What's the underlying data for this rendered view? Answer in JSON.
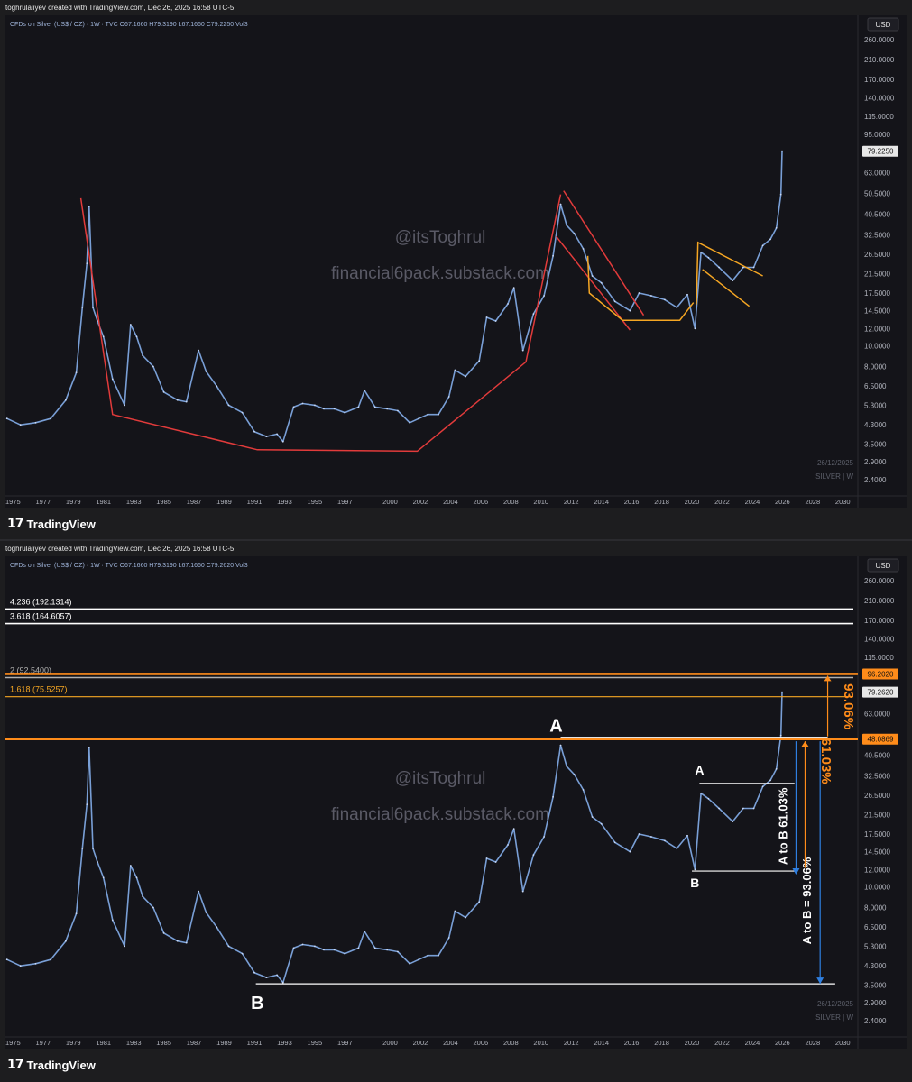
{
  "panels": [
    {
      "credit": "toghrulaliyev created with TradingView.com, Dec 26, 2025 16:58 UTC-5",
      "symbol_line": "CFDs on Silver (US$ / OZ) · 1W · TVC   O67.1660   H79.3190   L67.1660   C79.2250   Vol3",
      "currency_label": "USD",
      "last_price_label": "79.2250",
      "last_price": 79.225,
      "watermark_handle": "@itsToghrul",
      "watermark_site": "financial6pack.substack.com",
      "date_stamp": "26/12/2025",
      "series_stamp": "SILVER | W",
      "brand_mark": "17",
      "brand_name": "TradingView"
    },
    {
      "credit": "toghrulaliyev created with TradingView.com, Dec 26, 2025 16:58 UTC-5",
      "symbol_line": "CFDs on Silver (US$ / OZ) · 1W · TVC   O67.1660   H79.3190   L67.1660   C79.2620   Vol3",
      "currency_label": "USD",
      "last_price_label": "79.2620",
      "last_price": 79.262,
      "watermark_handle": "@itsToghrul",
      "watermark_site": "financial6pack.substack.com",
      "date_stamp": "26/12/2025",
      "series_stamp": "SILVER | W",
      "brand_mark": "17",
      "brand_name": "TradingView",
      "fib_levels": [
        {
          "label": "4.236 (192.1314)",
          "value": 192.1314,
          "color": "#ffffff"
        },
        {
          "label": "3.618 (164.6057)",
          "value": 164.6057,
          "color": "#ffffff"
        },
        {
          "label": "2 (92.5400)",
          "value": 92.54,
          "color": "#b0b0b0"
        },
        {
          "label": "1.618 (75.5257)",
          "value": 75.5257,
          "color": "#f5a623"
        }
      ],
      "price_tags": [
        {
          "label": "96.2020",
          "value": 96.202
        },
        {
          "label": "48.0869",
          "value": 48.0869
        }
      ],
      "annotations": {
        "big_a": "A",
        "big_b": "B",
        "small_a": "A",
        "small_b": "B",
        "measure_small": "A to B 61.03%",
        "measure_big": "A to B = 93.06%",
        "pct_upper": "93.06%",
        "pct_lower": "61.03%"
      }
    }
  ],
  "chart_data": [
    {
      "type": "line",
      "title": "CFDs on Silver (US$ / OZ) · 1W · TVC",
      "xlabel": "",
      "ylabel": "USD",
      "log_scale": true,
      "grid": false,
      "x_tick_labels": [
        "1975",
        "1977",
        "1979",
        "1981",
        "1983",
        "1985",
        "1987",
        "1989",
        "1991",
        "1993",
        "1995",
        "1997",
        "2000",
        "2002",
        "2004",
        "2006",
        "2008",
        "2010",
        "2012",
        "2014",
        "2016",
        "2018",
        "2020",
        "2022",
        "2024",
        "2026",
        "2028",
        "2030"
      ],
      "y_tick_labels": [
        "260.0000",
        "210.0000",
        "170.0000",
        "140.0000",
        "115.0000",
        "95.0000",
        "63.0000",
        "50.5000",
        "40.5000",
        "32.5000",
        "26.5000",
        "21.5000",
        "17.5000",
        "14.5000",
        "12.0000",
        "10.0000",
        "8.0000",
        "6.5000",
        "5.3000",
        "4.3000",
        "3.5000",
        "2.9000",
        "2.4000"
      ],
      "ylim": [
        2.2,
        300
      ],
      "xlim": [
        1974.5,
        2031
      ],
      "series": [
        {
          "x": [
            1974.6,
            1975.5,
            1976.5,
            1977.5,
            1978.5,
            1979.2,
            1979.6,
            1979.9,
            1980.05,
            1980.3,
            1980.6,
            1981.0,
            1981.6,
            1982.4,
            1982.8,
            1983.2,
            1983.6,
            1984.3,
            1985.0,
            1985.9,
            1986.5,
            1987.3,
            1987.8,
            1988.5,
            1989.3,
            1990.2,
            1991.0,
            1991.8,
            1992.5,
            1992.9,
            1993.6,
            1994.2,
            1995.0,
            1995.6,
            1996.3,
            1997.0,
            1997.9,
            1998.3,
            1999.0,
            1999.8,
            2000.5,
            2001.3,
            2001.9,
            2002.5,
            2003.2,
            2003.9,
            2004.3,
            2005.0,
            2005.9,
            2006.4,
            2007.0,
            2007.8,
            2008.2,
            2008.8,
            2009.5,
            2010.2,
            2010.8,
            2011.3,
            2011.7,
            2012.2,
            2012.8,
            2013.4,
            2014.0,
            2014.9,
            2015.9,
            2016.5,
            2017.3,
            2018.2,
            2019.0,
            2019.7,
            2020.2,
            2020.6,
            2021.1,
            2021.8,
            2022.7,
            2023.4,
            2024.1,
            2024.7,
            2025.2,
            2025.6,
            2025.9,
            2025.98
          ],
          "y": [
            4.6,
            4.3,
            4.4,
            4.6,
            5.6,
            7.5,
            15,
            24,
            44,
            15,
            13,
            11,
            7,
            5.3,
            12.5,
            11,
            9,
            8,
            6.1,
            5.6,
            5.5,
            9.5,
            7.6,
            6.5,
            5.3,
            4.9,
            4.0,
            3.8,
            3.9,
            3.6,
            5.2,
            5.4,
            5.3,
            5.1,
            5.1,
            4.9,
            5.2,
            6.2,
            5.2,
            5.1,
            5.0,
            4.4,
            4.6,
            4.8,
            4.8,
            5.8,
            7.7,
            7.2,
            8.5,
            13.5,
            13,
            15.6,
            18.5,
            9.5,
            14,
            17,
            26,
            45,
            36,
            33,
            28,
            21,
            19.5,
            16,
            14.5,
            17.5,
            17,
            16.3,
            15,
            17.2,
            12,
            27,
            25.5,
            23,
            20,
            23,
            23,
            29,
            31,
            35,
            50,
            79.3
          ]
        }
      ]
    },
    {
      "type": "line",
      "title": "CFDs on Silver (US$ / OZ) · 1W · TVC",
      "xlabel": "",
      "ylabel": "USD",
      "log_scale": true,
      "grid": false,
      "x_tick_labels": [
        "1975",
        "1977",
        "1979",
        "1981",
        "1983",
        "1985",
        "1987",
        "1989",
        "1991",
        "1993",
        "1995",
        "1997",
        "2000",
        "2002",
        "2004",
        "2006",
        "2008",
        "2010",
        "2012",
        "2014",
        "2016",
        "2018",
        "2020",
        "2022",
        "2024",
        "2026",
        "2028",
        "2030"
      ],
      "y_tick_labels": [
        "260.0000",
        "210.0000",
        "170.0000",
        "140.0000",
        "115.0000",
        "63.0000",
        "40.5000",
        "32.5000",
        "26.5000",
        "21.5000",
        "17.5000",
        "14.5000",
        "12.0000",
        "10.0000",
        "8.0000",
        "6.5000",
        "5.3000",
        "4.3000",
        "3.5000",
        "2.9000",
        "2.4000"
      ],
      "ylim": [
        2.2,
        300
      ],
      "xlim": [
        1974.5,
        2031
      ],
      "series": [
        {
          "x": [
            1974.6,
            1975.5,
            1976.5,
            1977.5,
            1978.5,
            1979.2,
            1979.6,
            1979.9,
            1980.05,
            1980.3,
            1980.6,
            1981.0,
            1981.6,
            1982.4,
            1982.8,
            1983.2,
            1983.6,
            1984.3,
            1985.0,
            1985.9,
            1986.5,
            1987.3,
            1987.8,
            1988.5,
            1989.3,
            1990.2,
            1991.0,
            1991.8,
            1992.5,
            1992.9,
            1993.6,
            1994.2,
            1995.0,
            1995.6,
            1996.3,
            1997.0,
            1997.9,
            1998.3,
            1999.0,
            1999.8,
            2000.5,
            2001.3,
            2001.9,
            2002.5,
            2003.2,
            2003.9,
            2004.3,
            2005.0,
            2005.9,
            2006.4,
            2007.0,
            2007.8,
            2008.2,
            2008.8,
            2009.5,
            2010.2,
            2010.8,
            2011.3,
            2011.7,
            2012.2,
            2012.8,
            2013.4,
            2014.0,
            2014.9,
            2015.9,
            2016.5,
            2017.3,
            2018.2,
            2019.0,
            2019.7,
            2020.2,
            2020.6,
            2021.1,
            2021.8,
            2022.7,
            2023.4,
            2024.1,
            2024.7,
            2025.2,
            2025.6,
            2025.9,
            2025.98
          ],
          "y": [
            4.6,
            4.3,
            4.4,
            4.6,
            5.6,
            7.5,
            15,
            24,
            44,
            15,
            13,
            11,
            7,
            5.3,
            12.5,
            11,
            9,
            8,
            6.1,
            5.6,
            5.5,
            9.5,
            7.6,
            6.5,
            5.3,
            4.9,
            4.0,
            3.8,
            3.9,
            3.6,
            5.2,
            5.4,
            5.3,
            5.1,
            5.1,
            4.9,
            5.2,
            6.2,
            5.2,
            5.1,
            5.0,
            4.4,
            4.6,
            4.8,
            4.8,
            5.8,
            7.7,
            7.2,
            8.5,
            13.5,
            13,
            15.6,
            18.5,
            9.5,
            14,
            17,
            26,
            45,
            36,
            33,
            28,
            21,
            19.5,
            16,
            14.5,
            17.5,
            17,
            16.3,
            15,
            17.2,
            12,
            27,
            25.5,
            23,
            20,
            23,
            23,
            29,
            31,
            35,
            50,
            79.3
          ]
        }
      ]
    }
  ],
  "drawings_top": {
    "red_lines": [
      [
        [
          1979.5,
          48
        ],
        [
          1981.6,
          4.8
        ],
        [
          1991.2,
          3.3
        ],
        [
          2001.8,
          3.25
        ],
        [
          2009.0,
          8.4
        ],
        [
          2011.3,
          50
        ]
      ],
      [
        [
          2011.5,
          52
        ],
        [
          2016.8,
          13.8
        ]
      ],
      [
        [
          2011.0,
          32
        ],
        [
          2015.9,
          11.8
        ]
      ]
    ],
    "orange_lines": [
      [
        [
          2013.1,
          26
        ],
        [
          2013.2,
          17.5
        ],
        [
          2015.4,
          13.1
        ],
        [
          2019.2,
          13.1
        ],
        [
          2020.1,
          15.8
        ]
      ],
      [
        [
          2020.3,
          15.5
        ],
        [
          2020.4,
          30
        ],
        [
          2024.7,
          21
        ]
      ],
      [
        [
          2020.7,
          22.5
        ],
        [
          2023.8,
          15.2
        ]
      ]
    ]
  }
}
